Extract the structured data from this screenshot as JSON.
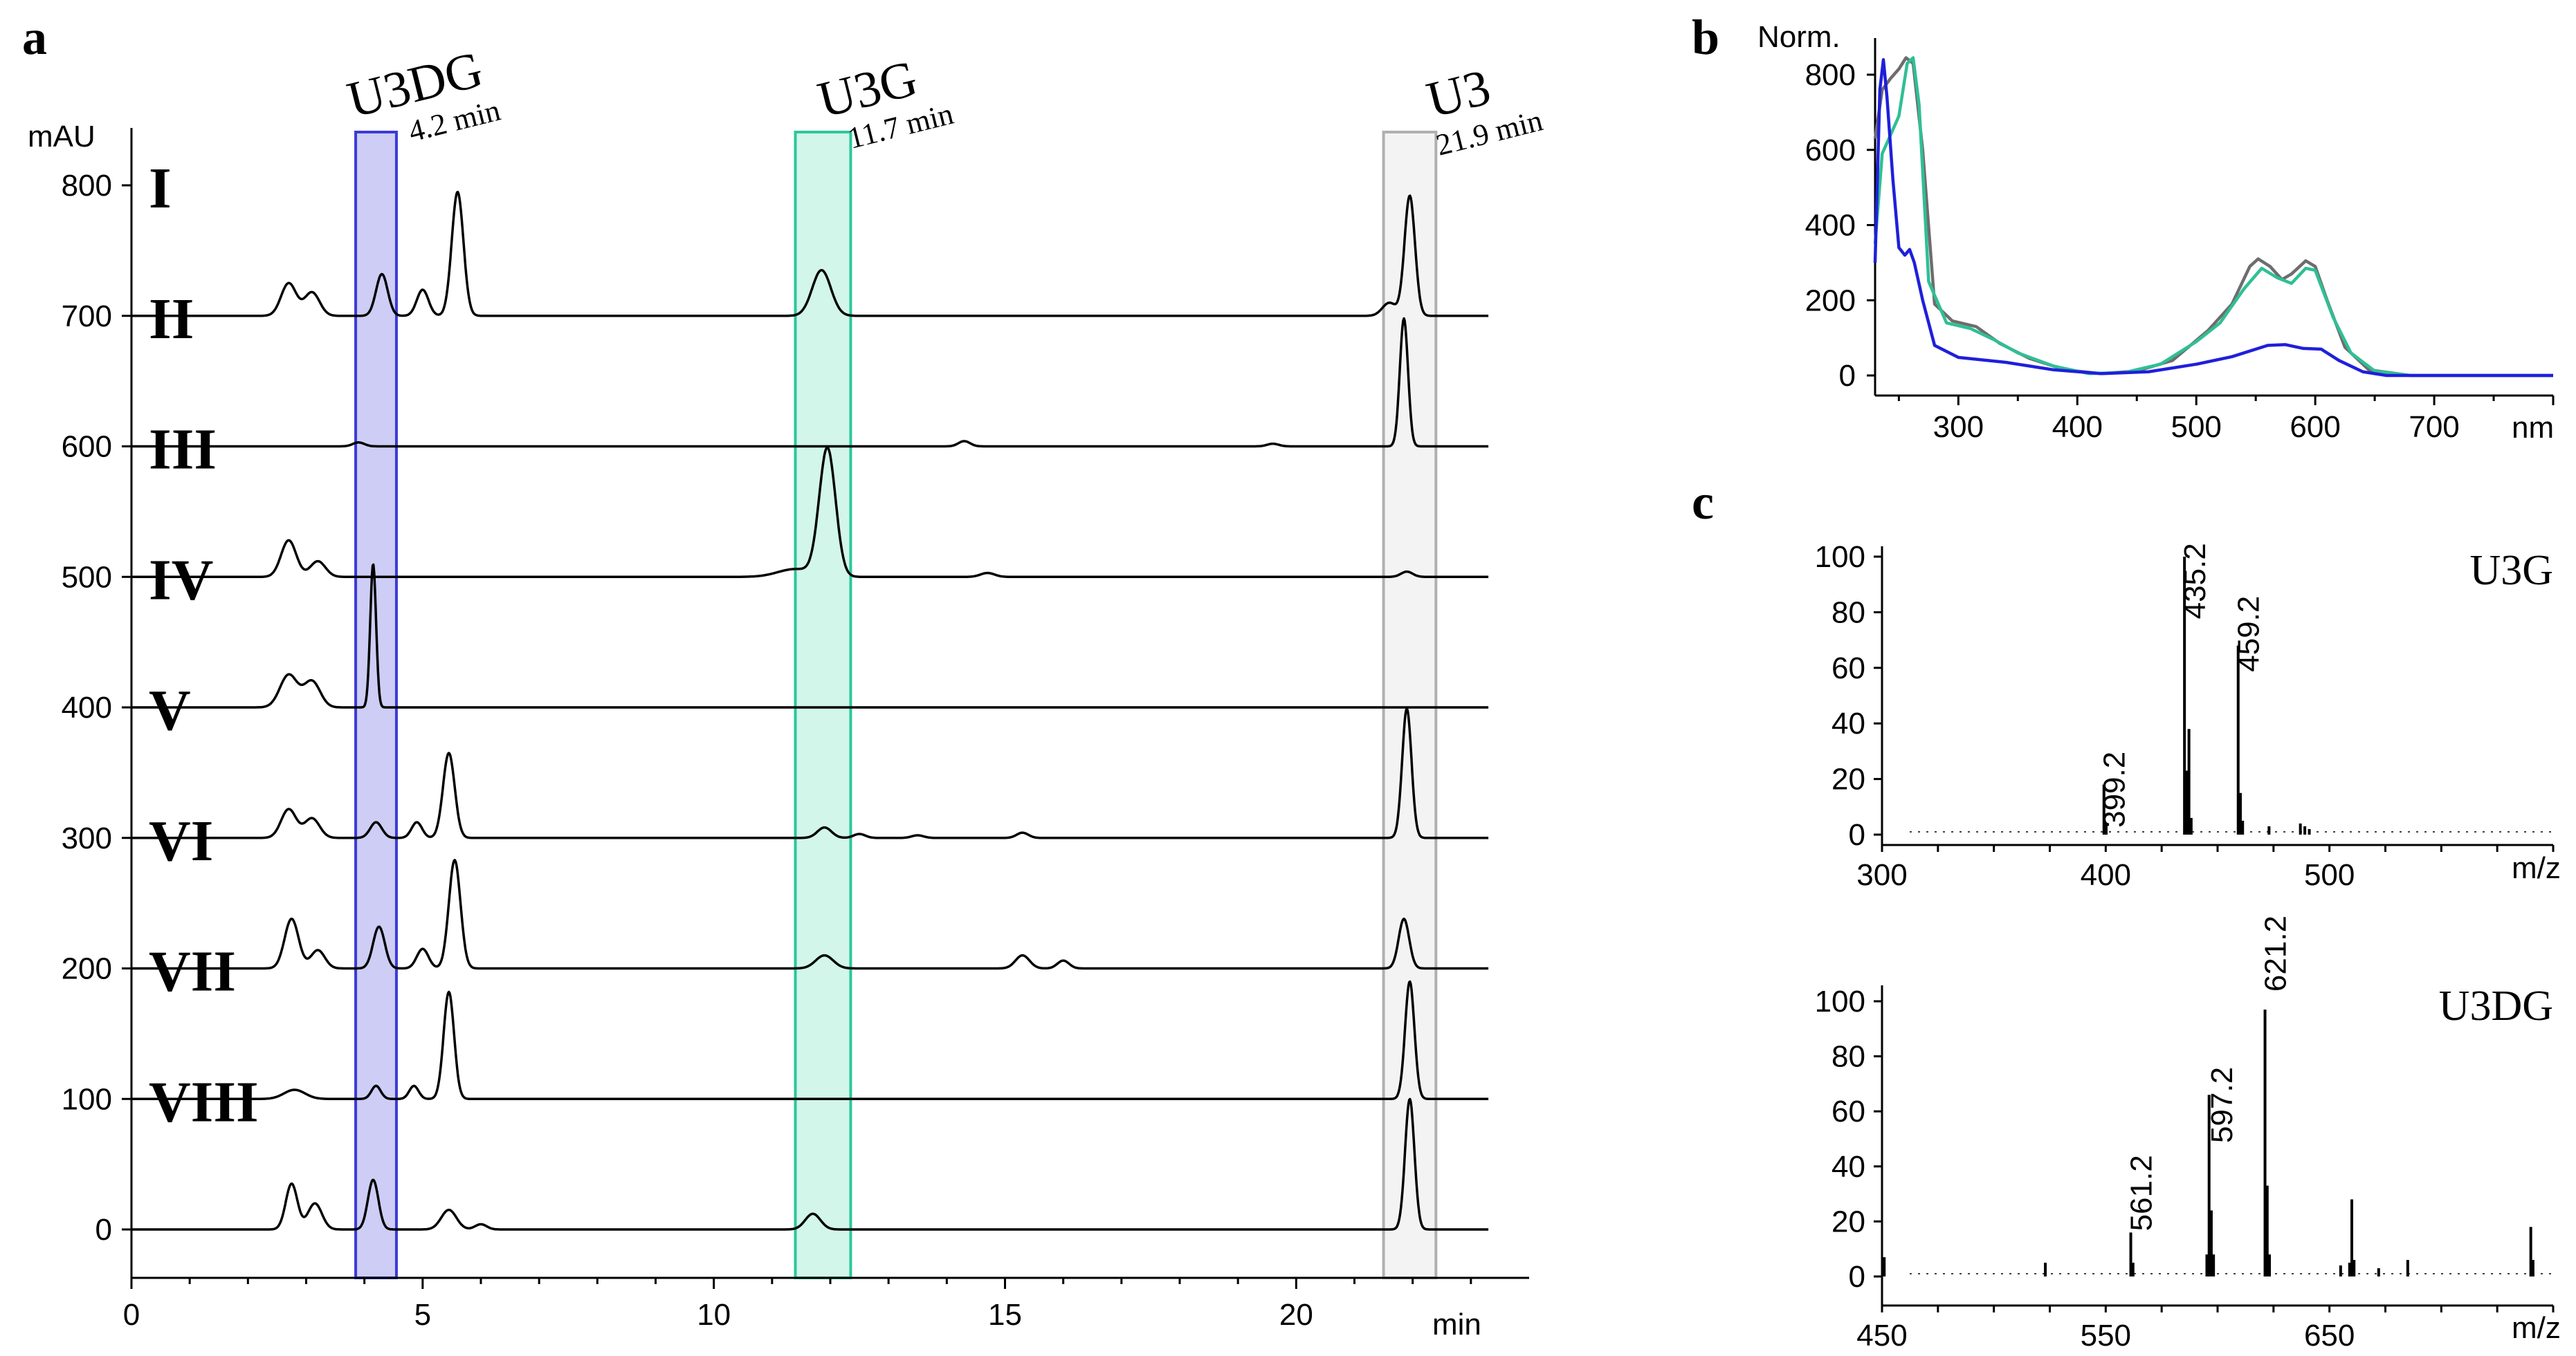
{
  "chart_data": [
    {
      "id": "a",
      "type": "line",
      "panel_label": "a",
      "ylabel": "mAU",
      "xlabel": "min",
      "xlim": [
        0,
        24
      ],
      "ylim": [
        -40,
        870
      ],
      "xticks": [
        0,
        5,
        10,
        15,
        20
      ],
      "yticks": [
        0,
        100,
        200,
        300,
        400,
        500,
        600,
        700,
        800
      ],
      "highlight_bands": [
        {
          "name": "U3DG",
          "time_label": "4.2 min",
          "x_range": [
            3.85,
            4.55
          ],
          "color": "#3b3bd6",
          "fill": "#c8c8f4"
        },
        {
          "name": "U3G",
          "time_label": "11.7 min",
          "x_range": [
            11.4,
            12.35
          ],
          "color": "#2cc79a",
          "fill": "#cdf5e7"
        },
        {
          "name": "U3",
          "time_label": "21.9 min",
          "x_range": [
            21.5,
            22.4
          ],
          "color": "#b0b0b0",
          "fill": "#f2f2f2"
        }
      ],
      "series": [
        {
          "name": "I",
          "baseline": 700,
          "peaks": [
            [
              2.7,
              25,
              0.13
            ],
            [
              3.1,
              18,
              0.13
            ],
            [
              4.3,
              32,
              0.1
            ],
            [
              5.0,
              20,
              0.1
            ],
            [
              5.6,
              95,
              0.1
            ],
            [
              11.85,
              35,
              0.16
            ],
            [
              21.6,
              10,
              0.12
            ],
            [
              21.95,
              92,
              0.09
            ]
          ]
        },
        {
          "name": "II",
          "baseline": 600,
          "peaks": [
            [
              3.9,
              3,
              0.1
            ],
            [
              14.3,
              4,
              0.1
            ],
            [
              19.6,
              2,
              0.1
            ],
            [
              21.85,
              98,
              0.07
            ]
          ]
        },
        {
          "name": "III",
          "baseline": 500,
          "peaks": [
            [
              2.7,
              28,
              0.13
            ],
            [
              3.2,
              12,
              0.13
            ],
            [
              11.4,
              6,
              0.3
            ],
            [
              11.95,
              98,
              0.14
            ],
            [
              14.7,
              3,
              0.12
            ],
            [
              21.9,
              4,
              0.1
            ]
          ]
        },
        {
          "name": "IV",
          "baseline": 400,
          "peaks": [
            [
              2.7,
              25,
              0.15
            ],
            [
              3.1,
              20,
              0.14
            ],
            [
              4.15,
              110,
              0.05
            ]
          ]
        },
        {
          "name": "V",
          "baseline": 300,
          "peaks": [
            [
              2.7,
              22,
              0.13
            ],
            [
              3.1,
              15,
              0.13
            ],
            [
              4.2,
              12,
              0.1
            ],
            [
              4.9,
              12,
              0.09
            ],
            [
              5.45,
              65,
              0.1
            ],
            [
              11.9,
              8,
              0.12
            ],
            [
              12.5,
              3,
              0.1
            ],
            [
              13.5,
              2,
              0.1
            ],
            [
              15.3,
              4,
              0.1
            ],
            [
              21.9,
              99,
              0.08
            ]
          ]
        },
        {
          "name": "VI",
          "baseline": 200,
          "peaks": [
            [
              2.75,
              38,
              0.12
            ],
            [
              3.2,
              14,
              0.12
            ],
            [
              4.25,
              32,
              0.1
            ],
            [
              5.0,
              15,
              0.1
            ],
            [
              5.55,
              83,
              0.1
            ],
            [
              11.9,
              10,
              0.15
            ],
            [
              15.3,
              10,
              0.12
            ],
            [
              16.0,
              6,
              0.1
            ],
            [
              21.85,
              38,
              0.09
            ]
          ]
        },
        {
          "name": "VII",
          "baseline": 100,
          "peaks": [
            [
              2.8,
              7,
              0.18
            ],
            [
              4.2,
              10,
              0.08
            ],
            [
              4.85,
              10,
              0.08
            ],
            [
              5.45,
              82,
              0.09
            ],
            [
              21.95,
              90,
              0.08
            ]
          ]
        },
        {
          "name": "VIII",
          "baseline": 0,
          "peaks": [
            [
              2.75,
              35,
              0.1
            ],
            [
              3.15,
              20,
              0.12
            ],
            [
              4.15,
              38,
              0.09
            ],
            [
              5.45,
              15,
              0.13
            ],
            [
              6.0,
              4,
              0.1
            ],
            [
              11.7,
              12,
              0.13
            ],
            [
              21.95,
              100,
              0.08
            ]
          ]
        }
      ]
    },
    {
      "id": "b",
      "type": "line",
      "panel_label": "b",
      "ylabel": "Norm.",
      "xlabel": "nm",
      "xlim": [
        230,
        800
      ],
      "ylim": [
        -20,
        870
      ],
      "xticks": [
        300,
        400,
        500,
        600,
        700
      ],
      "yticks": [
        0,
        200,
        400,
        600,
        800
      ],
      "series": [
        {
          "name": "U3DG",
          "color": "#1f1fdb",
          "points": [
            [
              230,
              300
            ],
            [
              234,
              760
            ],
            [
              237,
              840
            ],
            [
              240,
              740
            ],
            [
              245,
              520
            ],
            [
              250,
              340
            ],
            [
              255,
              320
            ],
            [
              259,
              335
            ],
            [
              263,
              300
            ],
            [
              270,
              200
            ],
            [
              280,
              80
            ],
            [
              300,
              48
            ],
            [
              340,
              35
            ],
            [
              380,
              15
            ],
            [
              420,
              5
            ],
            [
              460,
              10
            ],
            [
              500,
              30
            ],
            [
              530,
              50
            ],
            [
              560,
              80
            ],
            [
              575,
              82
            ],
            [
              590,
              72
            ],
            [
              605,
              70
            ],
            [
              620,
              40
            ],
            [
              640,
              10
            ],
            [
              660,
              0
            ],
            [
              700,
              0
            ],
            [
              750,
              0
            ],
            [
              800,
              0
            ]
          ]
        },
        {
          "name": "U3G",
          "color": "#2fbf95",
          "points": [
            [
              230,
              350
            ],
            [
              236,
              590
            ],
            [
              243,
              640
            ],
            [
              250,
              690
            ],
            [
              257,
              830
            ],
            [
              262,
              845
            ],
            [
              267,
              720
            ],
            [
              275,
              250
            ],
            [
              290,
              140
            ],
            [
              310,
              125
            ],
            [
              330,
              95
            ],
            [
              350,
              60
            ],
            [
              380,
              25
            ],
            [
              410,
              5
            ],
            [
              440,
              8
            ],
            [
              470,
              30
            ],
            [
              500,
              90
            ],
            [
              520,
              140
            ],
            [
              540,
              230
            ],
            [
              555,
              285
            ],
            [
              568,
              260
            ],
            [
              580,
              245
            ],
            [
              592,
              285
            ],
            [
              600,
              280
            ],
            [
              615,
              155
            ],
            [
              630,
              60
            ],
            [
              650,
              12
            ],
            [
              680,
              0
            ],
            [
              750,
              0
            ],
            [
              800,
              0
            ]
          ]
        },
        {
          "name": "U3",
          "color": "#6d6d6d",
          "points": [
            [
              230,
              630
            ],
            [
              236,
              760
            ],
            [
              243,
              790
            ],
            [
              250,
              815
            ],
            [
              256,
              845
            ],
            [
              262,
              830
            ],
            [
              270,
              600
            ],
            [
              280,
              190
            ],
            [
              295,
              145
            ],
            [
              315,
              130
            ],
            [
              335,
              85
            ],
            [
              360,
              45
            ],
            [
              390,
              15
            ],
            [
              420,
              5
            ],
            [
              450,
              12
            ],
            [
              480,
              40
            ],
            [
              510,
              120
            ],
            [
              530,
              190
            ],
            [
              545,
              290
            ],
            [
              552,
              310
            ],
            [
              562,
              290
            ],
            [
              572,
              255
            ],
            [
              580,
              270
            ],
            [
              592,
              305
            ],
            [
              600,
              290
            ],
            [
              610,
              200
            ],
            [
              625,
              75
            ],
            [
              645,
              15
            ],
            [
              680,
              0
            ],
            [
              750,
              0
            ],
            [
              800,
              0
            ]
          ]
        }
      ]
    },
    {
      "id": "c-top",
      "type": "bar",
      "panel_label": "c",
      "title": "U3G",
      "xlabel": "m/z",
      "xlim": [
        300,
        600
      ],
      "ylim": [
        0,
        105
      ],
      "xticks": [
        300,
        400,
        500
      ],
      "yticks": [
        0,
        20,
        40,
        60,
        80,
        100
      ],
      "peak_labels": [
        "399.2",
        "435.2",
        "459.2"
      ],
      "peaks": [
        [
          399.2,
          18
        ],
        [
          400.2,
          4
        ],
        [
          435.2,
          100
        ],
        [
          436.2,
          23
        ],
        [
          437.2,
          38
        ],
        [
          438.2,
          6
        ],
        [
          459.2,
          68
        ],
        [
          460.2,
          15
        ],
        [
          461.2,
          5
        ],
        [
          473,
          3
        ],
        [
          487,
          4
        ],
        [
          489,
          3
        ],
        [
          491,
          2
        ]
      ]
    },
    {
      "id": "c-bottom",
      "type": "bar",
      "title": "U3DG",
      "xlabel": "m/z",
      "xlim": [
        450,
        750
      ],
      "ylim": [
        0,
        105
      ],
      "xticks": [
        450,
        550,
        650
      ],
      "yticks": [
        0,
        20,
        40,
        60,
        80,
        100
      ],
      "peak_labels": [
        "561.2",
        "597.2",
        "621.2"
      ],
      "peaks": [
        [
          451,
          7
        ],
        [
          523,
          5
        ],
        [
          561.2,
          16
        ],
        [
          562.2,
          5
        ],
        [
          595.2,
          8
        ],
        [
          596.2,
          66
        ],
        [
          597.2,
          24
        ],
        [
          598.2,
          8
        ],
        [
          621.2,
          97
        ],
        [
          622.2,
          33
        ],
        [
          623.2,
          8
        ],
        [
          655,
          4
        ],
        [
          659,
          5
        ],
        [
          660,
          28
        ],
        [
          661,
          6
        ],
        [
          672,
          3
        ],
        [
          685,
          6
        ],
        [
          740,
          18
        ],
        [
          741,
          6
        ]
      ]
    }
  ]
}
